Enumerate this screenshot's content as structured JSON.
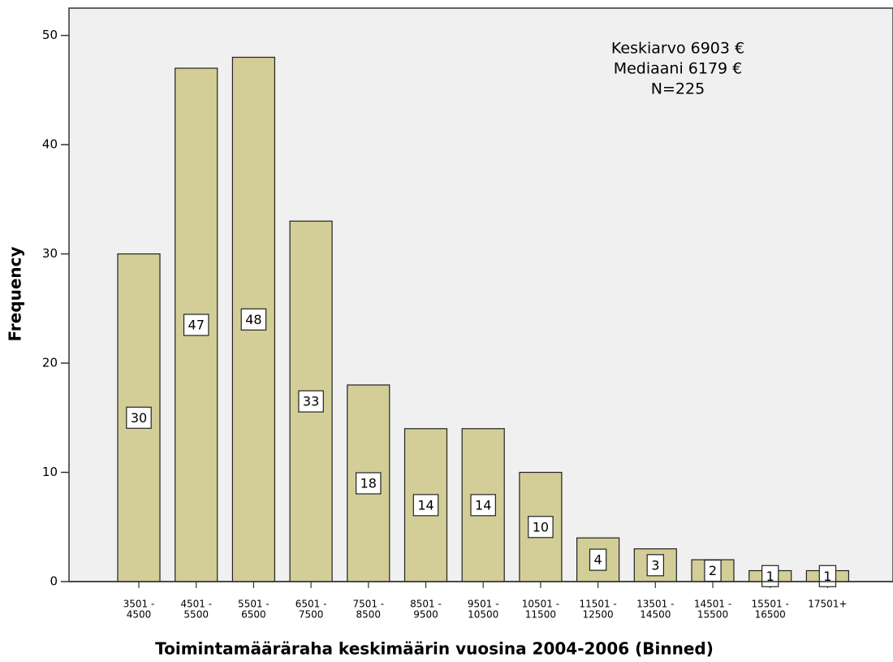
{
  "chart_data": {
    "type": "bar",
    "annotation": [
      "Keskiarvo 6903 €",
      "Mediaani 6179 €",
      "N=225"
    ],
    "x_label": "Toimintamääräraha keskimäärin vuosina 2004-2006 (Binned)",
    "y_label": "Frequency",
    "categories": [
      [
        "3501 -",
        "4500"
      ],
      [
        "4501 -",
        "5500"
      ],
      [
        "5501 -",
        "6500"
      ],
      [
        "6501 -",
        "7500"
      ],
      [
        "7501 -",
        "8500"
      ],
      [
        "8501 -",
        "9500"
      ],
      [
        "9501 -",
        "10500"
      ],
      [
        "10501 -",
        "11500"
      ],
      [
        "11501 -",
        "12500"
      ],
      [
        "13501 -",
        "14500"
      ],
      [
        "14501 -",
        "15500"
      ],
      [
        "15501 -",
        "16500"
      ],
      [
        "17501+"
      ]
    ],
    "values": [
      30,
      47,
      48,
      33,
      18,
      14,
      14,
      10,
      4,
      3,
      2,
      1,
      1
    ],
    "color": "#d3ce97",
    "ylim": [
      0,
      52.5
    ],
    "yticks": [
      0,
      10,
      20,
      30,
      40,
      50
    ]
  }
}
